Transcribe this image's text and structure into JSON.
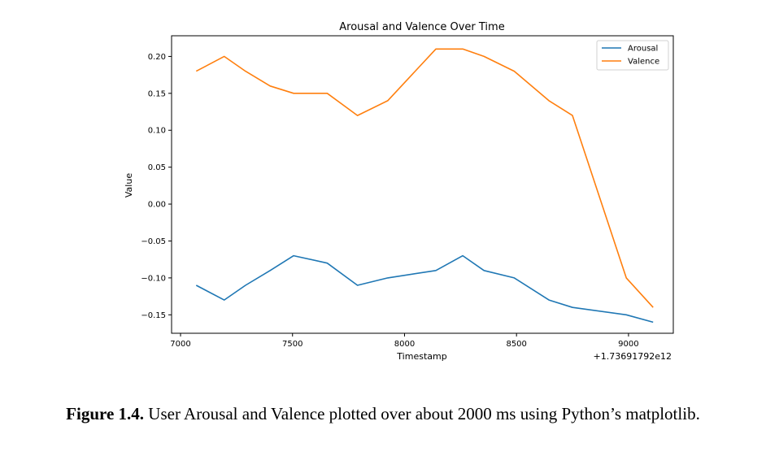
{
  "chart_data": {
    "type": "line",
    "title": "Arousal and Valence Over Time",
    "xlabel": "Timestamp",
    "ylabel": "Value",
    "x_offset_label": "+1.73691792e12",
    "xlim": [
      6960,
      9200
    ],
    "ylim": [
      -0.175,
      0.228
    ],
    "xticks": [
      7000,
      7500,
      8000,
      8500,
      9000
    ],
    "yticks": [
      -0.15,
      -0.1,
      -0.05,
      0.0,
      0.05,
      0.1,
      0.15,
      0.2
    ],
    "ytick_labels": [
      "−0.15",
      "−0.10",
      "−0.05",
      "0.00",
      "0.05",
      "0.10",
      "0.15",
      "0.20"
    ],
    "legend_position": "top-right",
    "grid": false,
    "x": [
      7070,
      7195,
      7290,
      7400,
      7505,
      7655,
      7790,
      7925,
      8140,
      8260,
      8355,
      8490,
      8645,
      8750,
      8990,
      9110
    ],
    "series": [
      {
        "name": "Arousal",
        "color": "#1f77b4",
        "values": [
          -0.11,
          -0.13,
          -0.11,
          -0.09,
          -0.07,
          -0.08,
          -0.11,
          -0.1,
          -0.09,
          -0.07,
          -0.09,
          -0.1,
          -0.13,
          -0.14,
          -0.15,
          -0.16
        ]
      },
      {
        "name": "Valence",
        "color": "#ff7f0e",
        "values": [
          0.18,
          0.2,
          0.18,
          0.16,
          0.15,
          0.15,
          0.12,
          0.14,
          0.21,
          0.21,
          0.2,
          0.18,
          0.14,
          0.12,
          -0.1,
          -0.14
        ]
      }
    ]
  },
  "caption": {
    "bold": "Figure 1.4.",
    "text": " User Arousal and Valence plotted over about 2000 ms using Python’s matplotlib."
  }
}
